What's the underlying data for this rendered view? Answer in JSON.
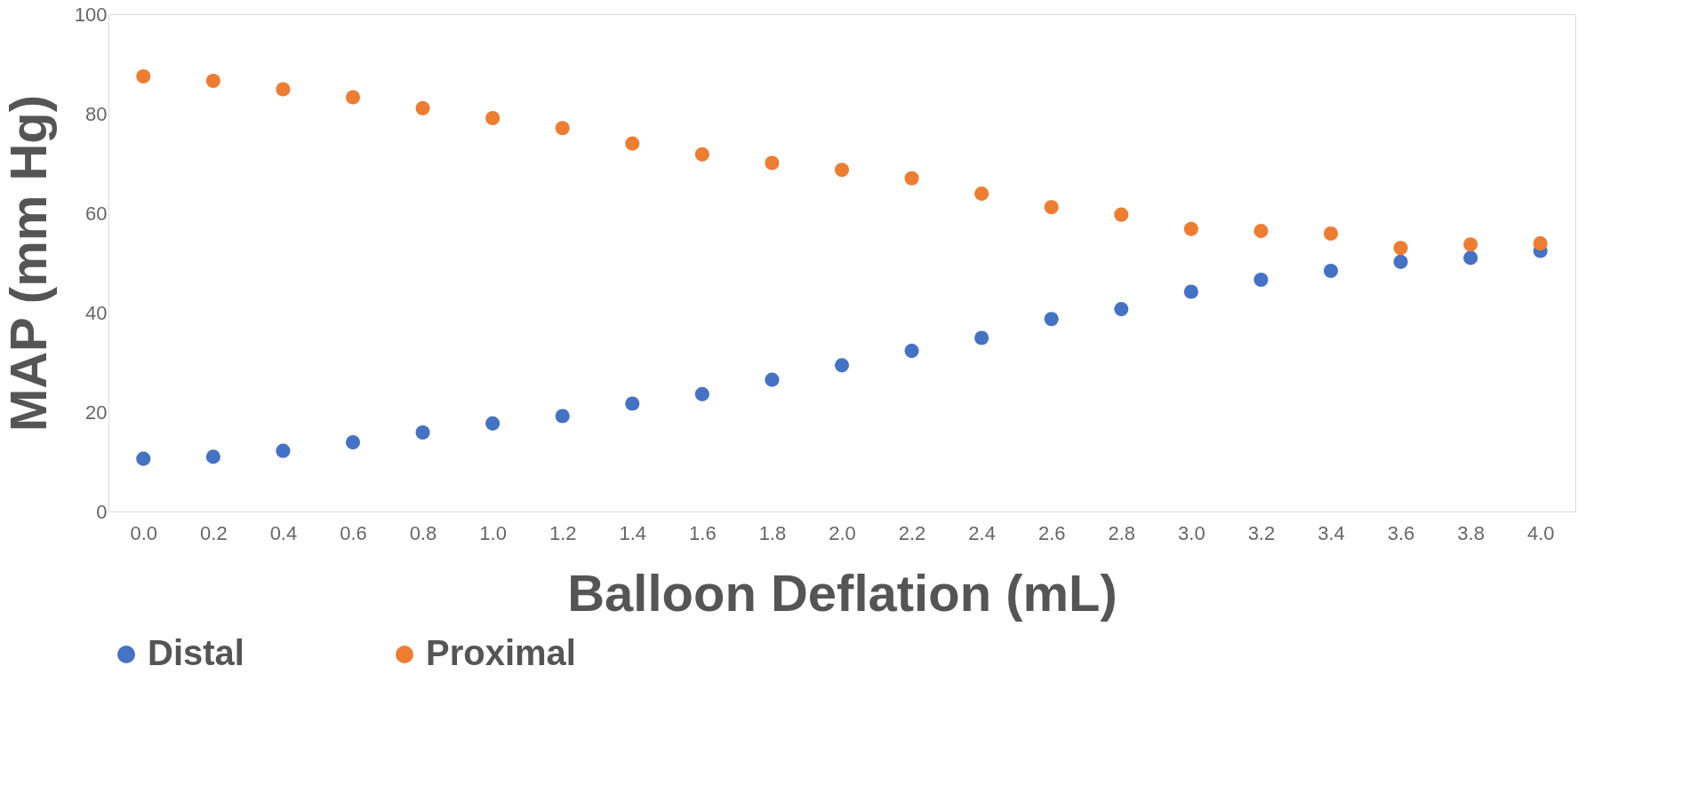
{
  "chart_data": {
    "type": "scatter",
    "xlabel": "Balloon Deflation (mL)",
    "ylabel": "MAP (mm Hg)",
    "categories": [
      "0.0",
      "0.2",
      "0.4",
      "0.6",
      "0.8",
      "1.0",
      "1.2",
      "1.4",
      "1.6",
      "1.8",
      "2.0",
      "2.2",
      "2.4",
      "2.6",
      "2.8",
      "3.0",
      "3.2",
      "3.4",
      "3.6",
      "3.8",
      "4.0"
    ],
    "series": [
      {
        "name": "Distal",
        "color": "#4472c4",
        "values": [
          10.6,
          11.0,
          12.2,
          13.9,
          15.9,
          17.7,
          19.2,
          21.7,
          23.6,
          26.5,
          29.4,
          32.3,
          34.9,
          38.7,
          40.7,
          44.2,
          46.6,
          48.4,
          50.2,
          51.0,
          52.4
        ]
      },
      {
        "name": "Proximal",
        "color": "#ed7d31",
        "values": [
          87.5,
          86.6,
          84.9,
          83.3,
          81.1,
          79.1,
          77.1,
          74.0,
          71.8,
          70.1,
          68.7,
          67.0,
          63.9,
          61.2,
          59.7,
          56.8,
          56.4,
          55.9,
          53.0,
          53.7,
          53.9
        ]
      }
    ],
    "ylim": [
      0,
      100
    ],
    "yticks": [
      0,
      20,
      40,
      60,
      80,
      100
    ],
    "grid": false,
    "legend": "bottom",
    "marker": "circle"
  }
}
